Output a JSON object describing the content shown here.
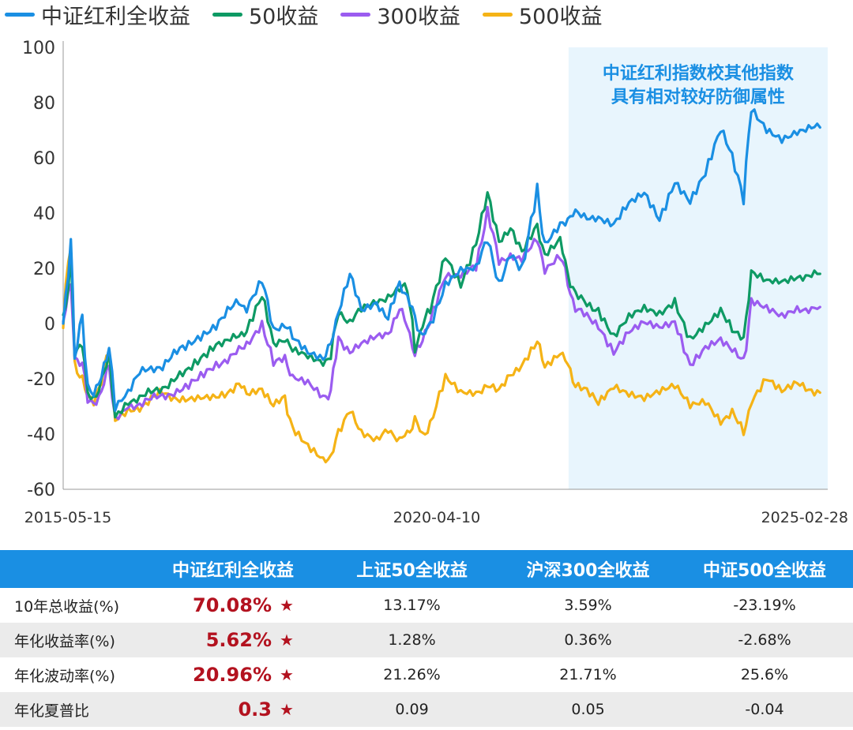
{
  "legend": [
    {
      "label": "中证红利全收益",
      "color": "#1a8fe3"
    },
    {
      "label": "50收益",
      "color": "#0e9a64"
    },
    {
      "label": "300收益",
      "color": "#9b5cf0"
    },
    {
      "label": "500收益",
      "color": "#f5b316"
    }
  ],
  "chart_data": {
    "type": "line",
    "x_tick_labels": [
      "2015-05-15",
      "2020-04-10",
      "2025-02-28"
    ],
    "ylim": [
      -60,
      100
    ],
    "y_ticks": [
      100,
      80,
      60,
      40,
      20,
      0,
      -20,
      -40,
      -60
    ],
    "highlight": {
      "text_lines": [
        "中证红利指数校其他指数",
        "具有相对较好防御属性"
      ],
      "x_from": 0.661,
      "x_to": 1.0,
      "color": "#e8f5fd"
    },
    "series": [
      {
        "name": "中证红利全收益",
        "color": "#1a8fe3",
        "points": [
          [
            0,
            0
          ],
          [
            0.01,
            30
          ],
          [
            0.015,
            -12
          ],
          [
            0.025,
            2
          ],
          [
            0.032,
            -22
          ],
          [
            0.04,
            -25
          ],
          [
            0.05,
            -20
          ],
          [
            0.06,
            -7
          ],
          [
            0.068,
            -30
          ],
          [
            0.085,
            -24
          ],
          [
            0.1,
            -18
          ],
          [
            0.13,
            -15
          ],
          [
            0.16,
            -8
          ],
          [
            0.2,
            0
          ],
          [
            0.23,
            8
          ],
          [
            0.24,
            5
          ],
          [
            0.26,
            15
          ],
          [
            0.275,
            -2
          ],
          [
            0.29,
            0
          ],
          [
            0.3,
            -5
          ],
          [
            0.32,
            -10
          ],
          [
            0.34,
            -12
          ],
          [
            0.35,
            -8
          ],
          [
            0.36,
            5
          ],
          [
            0.375,
            17
          ],
          [
            0.39,
            5
          ],
          [
            0.41,
            8
          ],
          [
            0.425,
            2
          ],
          [
            0.44,
            14
          ],
          [
            0.45,
            10
          ],
          [
            0.46,
            2
          ],
          [
            0.47,
            -5
          ],
          [
            0.48,
            0
          ],
          [
            0.5,
            15
          ],
          [
            0.52,
            20
          ],
          [
            0.54,
            20
          ],
          [
            0.555,
            30
          ],
          [
            0.57,
            15
          ],
          [
            0.585,
            25
          ],
          [
            0.6,
            18
          ],
          [
            0.62,
            49
          ],
          [
            0.63,
            28
          ],
          [
            0.65,
            35
          ],
          [
            0.66,
            38
          ],
          [
            0.67,
            40
          ],
          [
            0.7,
            38
          ],
          [
            0.72,
            35
          ],
          [
            0.74,
            43
          ],
          [
            0.76,
            47
          ],
          [
            0.78,
            38
          ],
          [
            0.8,
            52
          ],
          [
            0.82,
            45
          ],
          [
            0.84,
            55
          ],
          [
            0.86,
            70
          ],
          [
            0.875,
            60
          ],
          [
            0.89,
            47
          ],
          [
            0.9,
            77
          ],
          [
            0.92,
            70
          ],
          [
            0.94,
            67
          ],
          [
            0.96,
            70
          ],
          [
            0.99,
            71
          ]
        ]
      },
      {
        "name": "50收益",
        "color": "#0e9a64",
        "points": [
          [
            0,
            0
          ],
          [
            0.01,
            23
          ],
          [
            0.015,
            -10
          ],
          [
            0.025,
            -8
          ],
          [
            0.032,
            -25
          ],
          [
            0.04,
            -27
          ],
          [
            0.05,
            -22
          ],
          [
            0.06,
            -10
          ],
          [
            0.068,
            -33
          ],
          [
            0.085,
            -28
          ],
          [
            0.1,
            -27
          ],
          [
            0.13,
            -23
          ],
          [
            0.16,
            -18
          ],
          [
            0.2,
            -7
          ],
          [
            0.23,
            -5
          ],
          [
            0.24,
            -2
          ],
          [
            0.26,
            10
          ],
          [
            0.275,
            -8
          ],
          [
            0.29,
            -5
          ],
          [
            0.3,
            -10
          ],
          [
            0.32,
            -12
          ],
          [
            0.34,
            -14
          ],
          [
            0.35,
            -12
          ],
          [
            0.36,
            5
          ],
          [
            0.375,
            0
          ],
          [
            0.39,
            5
          ],
          [
            0.41,
            8
          ],
          [
            0.425,
            10
          ],
          [
            0.44,
            12
          ],
          [
            0.45,
            15
          ],
          [
            0.46,
            -10
          ],
          [
            0.47,
            0
          ],
          [
            0.48,
            5
          ],
          [
            0.5,
            25
          ],
          [
            0.52,
            15
          ],
          [
            0.54,
            30
          ],
          [
            0.555,
            46
          ],
          [
            0.57,
            30
          ],
          [
            0.585,
            35
          ],
          [
            0.6,
            25
          ],
          [
            0.62,
            35
          ],
          [
            0.63,
            25
          ],
          [
            0.65,
            30
          ],
          [
            0.66,
            18
          ],
          [
            0.67,
            10
          ],
          [
            0.7,
            5
          ],
          [
            0.72,
            -5
          ],
          [
            0.74,
            2
          ],
          [
            0.76,
            5
          ],
          [
            0.78,
            3
          ],
          [
            0.8,
            8
          ],
          [
            0.82,
            -5
          ],
          [
            0.84,
            0
          ],
          [
            0.86,
            5
          ],
          [
            0.875,
            -3
          ],
          [
            0.89,
            -5
          ],
          [
            0.9,
            18
          ],
          [
            0.92,
            15
          ],
          [
            0.94,
            15
          ],
          [
            0.96,
            17
          ],
          [
            0.99,
            18
          ]
        ]
      },
      {
        "name": "300收益",
        "color": "#9b5cf0",
        "points": [
          [
            0,
            0
          ],
          [
            0.01,
            16
          ],
          [
            0.015,
            -12
          ],
          [
            0.025,
            -15
          ],
          [
            0.032,
            -28
          ],
          [
            0.04,
            -29
          ],
          [
            0.05,
            -25
          ],
          [
            0.06,
            -15
          ],
          [
            0.068,
            -34
          ],
          [
            0.085,
            -30
          ],
          [
            0.1,
            -29
          ],
          [
            0.13,
            -26
          ],
          [
            0.16,
            -24
          ],
          [
            0.2,
            -15
          ],
          [
            0.23,
            -10
          ],
          [
            0.24,
            -7
          ],
          [
            0.26,
            0
          ],
          [
            0.275,
            -15
          ],
          [
            0.29,
            -12
          ],
          [
            0.3,
            -20
          ],
          [
            0.32,
            -22
          ],
          [
            0.34,
            -27
          ],
          [
            0.35,
            -25
          ],
          [
            0.36,
            -5
          ],
          [
            0.375,
            -10
          ],
          [
            0.39,
            -8
          ],
          [
            0.41,
            -5
          ],
          [
            0.425,
            -3
          ],
          [
            0.44,
            5
          ],
          [
            0.45,
            0
          ],
          [
            0.46,
            -12
          ],
          [
            0.47,
            -5
          ],
          [
            0.48,
            0
          ],
          [
            0.5,
            17
          ],
          [
            0.52,
            18
          ],
          [
            0.54,
            22
          ],
          [
            0.555,
            40
          ],
          [
            0.57,
            22
          ],
          [
            0.585,
            25
          ],
          [
            0.6,
            23
          ],
          [
            0.62,
            30
          ],
          [
            0.63,
            20
          ],
          [
            0.65,
            25
          ],
          [
            0.66,
            15
          ],
          [
            0.67,
            5
          ],
          [
            0.7,
            0
          ],
          [
            0.72,
            -10
          ],
          [
            0.74,
            -3
          ],
          [
            0.76,
            0
          ],
          [
            0.78,
            -2
          ],
          [
            0.8,
            0
          ],
          [
            0.82,
            -15
          ],
          [
            0.84,
            -8
          ],
          [
            0.86,
            -5
          ],
          [
            0.875,
            -10
          ],
          [
            0.89,
            -14
          ],
          [
            0.9,
            8
          ],
          [
            0.92,
            5
          ],
          [
            0.94,
            2
          ],
          [
            0.96,
            5
          ],
          [
            0.99,
            6
          ]
        ]
      },
      {
        "name": "500收益",
        "color": "#f5b316",
        "points": [
          [
            0,
            0
          ],
          [
            0.01,
            32
          ],
          [
            0.015,
            -15
          ],
          [
            0.025,
            -20
          ],
          [
            0.032,
            -27
          ],
          [
            0.04,
            -29
          ],
          [
            0.05,
            -20
          ],
          [
            0.06,
            -10
          ],
          [
            0.068,
            -35
          ],
          [
            0.085,
            -32
          ],
          [
            0.1,
            -30
          ],
          [
            0.13,
            -25
          ],
          [
            0.16,
            -28
          ],
          [
            0.2,
            -27
          ],
          [
            0.23,
            -22
          ],
          [
            0.24,
            -25
          ],
          [
            0.26,
            -23
          ],
          [
            0.275,
            -30
          ],
          [
            0.29,
            -27
          ],
          [
            0.3,
            -38
          ],
          [
            0.32,
            -45
          ],
          [
            0.34,
            -50
          ],
          [
            0.35,
            -48
          ],
          [
            0.36,
            -40
          ],
          [
            0.375,
            -30
          ],
          [
            0.39,
            -40
          ],
          [
            0.41,
            -43
          ],
          [
            0.425,
            -38
          ],
          [
            0.44,
            -42
          ],
          [
            0.45,
            -40
          ],
          [
            0.46,
            -35
          ],
          [
            0.47,
            -40
          ],
          [
            0.48,
            -38
          ],
          [
            0.5,
            -20
          ],
          [
            0.52,
            -25
          ],
          [
            0.54,
            -25
          ],
          [
            0.555,
            -22
          ],
          [
            0.57,
            -25
          ],
          [
            0.585,
            -18
          ],
          [
            0.6,
            -15
          ],
          [
            0.62,
            -7
          ],
          [
            0.63,
            -15
          ],
          [
            0.65,
            -10
          ],
          [
            0.66,
            -15
          ],
          [
            0.67,
            -22
          ],
          [
            0.7,
            -28
          ],
          [
            0.72,
            -22
          ],
          [
            0.74,
            -25
          ],
          [
            0.76,
            -27
          ],
          [
            0.78,
            -25
          ],
          [
            0.8,
            -23
          ],
          [
            0.82,
            -30
          ],
          [
            0.84,
            -28
          ],
          [
            0.86,
            -35
          ],
          [
            0.875,
            -32
          ],
          [
            0.89,
            -40
          ],
          [
            0.9,
            -28
          ],
          [
            0.92,
            -20
          ],
          [
            0.94,
            -25
          ],
          [
            0.96,
            -22
          ],
          [
            0.99,
            -25
          ]
        ]
      }
    ]
  },
  "table": {
    "headers": [
      "",
      "中证红利全收益",
      "上证50全收益",
      "沪深300全收益",
      "中证500全收益"
    ],
    "rows": [
      {
        "metric": "10年总收益(%)",
        "hl": "70.08%",
        "star": "★",
        "v1": "13.17%",
        "v2": "3.59%",
        "v3": "-23.19%"
      },
      {
        "metric": "年化收益率(%)",
        "hl": "5.62%",
        "star": "★",
        "v1": "1.28%",
        "v2": "0.36%",
        "v3": "-2.68%"
      },
      {
        "metric": "年化波动率(%)",
        "hl": "20.96%",
        "star": "★",
        "v1": "21.26%",
        "v2": "21.71%",
        "v3": "25.6%"
      },
      {
        "metric": "年化夏普比",
        "hl": "0.3",
        "star": "★",
        "v1": "0.09",
        "v2": "0.05",
        "v3": "-0.04"
      }
    ]
  }
}
